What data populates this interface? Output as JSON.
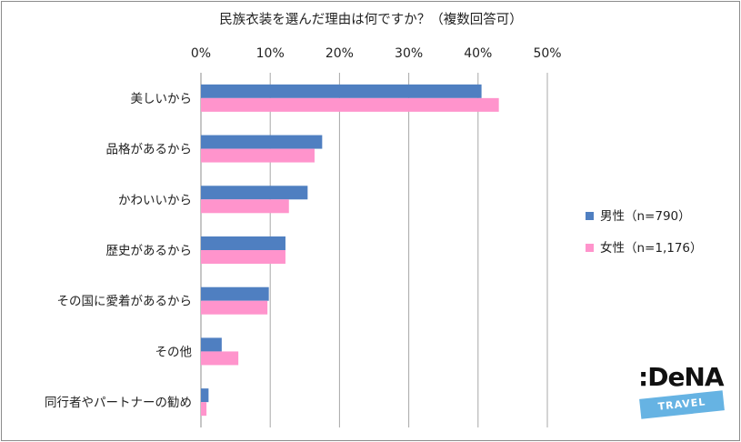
{
  "chart_data": {
    "type": "bar",
    "orientation": "horizontal",
    "title": "民族衣装を選んだ理由は何ですか？（複数回答可）",
    "categories": [
      "美しいから",
      "品格があるから",
      "かわいいから",
      "歴史があるから",
      "その国に愛着があるから",
      "その他",
      "同行者やパートナーの勧め"
    ],
    "series": [
      {
        "name": "男性（n=790）",
        "color": "#4f7fc1",
        "values": [
          40.5,
          17.5,
          15.4,
          12.2,
          9.8,
          3.0,
          1.1
        ]
      },
      {
        "name": "女性（n=1,176）",
        "color": "#ff94cc",
        "values": [
          43.0,
          16.4,
          12.7,
          12.2,
          9.6,
          5.4,
          0.8
        ]
      }
    ],
    "xlim": [
      0,
      50
    ],
    "x_ticks": [
      "0%",
      "10%",
      "20%",
      "30%",
      "40%",
      "50%"
    ],
    "x_tick_values": [
      0,
      10,
      20,
      30,
      40,
      50
    ],
    "xlabel": "",
    "ylabel": "",
    "grid": true,
    "legend_position": "right"
  },
  "logo": {
    "text": ":DeNA",
    "tag": "TRAVEL"
  }
}
